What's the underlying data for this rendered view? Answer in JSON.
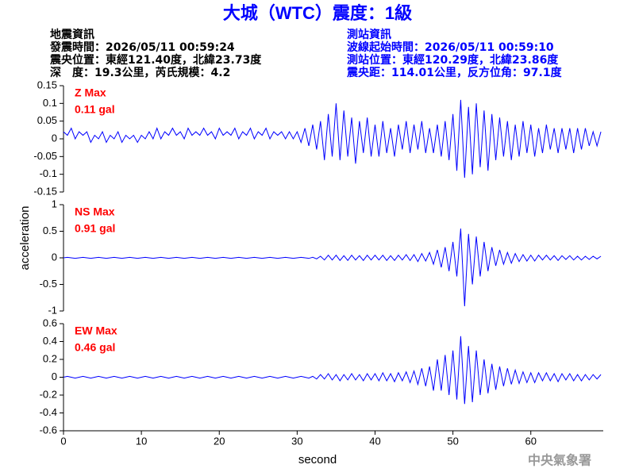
{
  "title": "大城（WTC）震度：1級",
  "left_info": [
    "地震資訊",
    "發震時間：2026/05/11 00:59:24",
    "震央位置：東經121.40度，北緯23.73度",
    "深　度：19.3公里，芮氏規模：4.2"
  ],
  "right_info": [
    "測站資訊",
    "波線起始時間：2026/05/11 00:59:10",
    "測站位置：東經120.29度，北緯23.86度",
    "震央距：114.01公里，反方位角：97.1度"
  ],
  "footer": "中央氣象署",
  "chart_data": [
    {
      "type": "line",
      "color": "#0000ff",
      "annotation_color": "#ff0000",
      "annotations": [
        "Z Max",
        "0.11 gal"
      ],
      "ylim": [
        -0.15,
        0.15
      ],
      "yticks": [
        -0.15,
        -0.1,
        -0.05,
        0,
        0.05,
        0.1,
        0.15
      ],
      "xlim": [
        0,
        69.3
      ],
      "x": [
        0,
        0.5,
        1,
        1.5,
        2,
        2.5,
        3,
        3.5,
        4,
        4.5,
        5,
        5.5,
        6,
        6.5,
        7,
        7.5,
        8,
        8.5,
        9,
        9.5,
        10,
        10.5,
        11,
        11.5,
        12,
        12.5,
        13,
        13.5,
        14,
        14.5,
        15,
        15.5,
        16,
        16.5,
        17,
        17.5,
        18,
        18.5,
        19,
        19.5,
        20,
        20.5,
        21,
        21.5,
        22,
        22.5,
        23,
        23.5,
        24,
        24.5,
        25,
        25.5,
        26,
        26.5,
        27,
        27.5,
        28,
        28.5,
        29,
        29.5,
        30,
        30.5,
        31,
        31.5,
        32,
        32.5,
        33,
        33.5,
        34,
        34.5,
        35,
        35.5,
        36,
        36.5,
        37,
        37.5,
        38,
        38.5,
        39,
        39.5,
        40,
        40.5,
        41,
        41.5,
        42,
        42.5,
        43,
        43.5,
        44,
        44.5,
        45,
        45.5,
        46,
        46.5,
        47,
        47.5,
        48,
        48.5,
        49,
        49.5,
        50,
        50.5,
        51,
        51.5,
        52,
        52.5,
        53,
        53.5,
        54,
        54.5,
        55,
        55.5,
        56,
        56.5,
        57,
        57.5,
        58,
        58.5,
        59,
        59.5,
        60,
        60.5,
        61,
        61.5,
        62,
        62.5,
        63,
        63.5,
        64,
        64.5,
        65,
        65.5,
        66,
        66.5,
        67,
        67.5,
        68,
        68.5,
        69
      ],
      "values": [
        0.02,
        0.01,
        0.03,
        0.0,
        0.02,
        0.01,
        0.02,
        -0.01,
        0.01,
        0.0,
        0.02,
        -0.01,
        0.01,
        0.0,
        0.02,
        -0.01,
        0.01,
        0.0,
        0.01,
        -0.01,
        0.01,
        0.0,
        0.02,
        0.0,
        0.03,
        0.0,
        0.02,
        0.01,
        0.03,
        0.01,
        0.02,
        0.0,
        0.03,
        0.01,
        0.02,
        0.01,
        0.03,
        0.01,
        0.02,
        0.0,
        0.03,
        0.01,
        0.02,
        0.01,
        0.03,
        0.0,
        0.02,
        0.01,
        0.03,
        0.0,
        0.02,
        0.01,
        0.03,
        0.0,
        0.02,
        0.01,
        0.02,
        0.0,
        0.02,
        0.0,
        0.02,
        -0.01,
        0.03,
        -0.02,
        0.04,
        -0.03,
        0.05,
        -0.06,
        0.07,
        -0.05,
        0.1,
        -0.06,
        0.08,
        -0.05,
        0.06,
        -0.07,
        0.05,
        -0.04,
        0.06,
        -0.05,
        0.04,
        -0.05,
        0.05,
        -0.04,
        0.03,
        -0.05,
        0.04,
        -0.03,
        0.05,
        -0.04,
        0.04,
        -0.03,
        0.05,
        -0.04,
        0.03,
        -0.04,
        0.04,
        -0.05,
        0.05,
        -0.06,
        0.07,
        -0.09,
        0.11,
        -0.11,
        0.09,
        -0.1,
        0.1,
        -0.08,
        0.08,
        -0.09,
        0.07,
        -0.06,
        0.06,
        -0.05,
        0.05,
        -0.06,
        0.04,
        -0.05,
        0.05,
        -0.04,
        0.04,
        -0.05,
        0.03,
        -0.04,
        0.04,
        -0.03,
        0.03,
        -0.04,
        0.03,
        -0.03,
        0.03,
        -0.04,
        0.03,
        -0.03,
        0.03,
        -0.02,
        0.02,
        -0.02,
        0.02
      ]
    },
    {
      "type": "line",
      "color": "#0000ff",
      "annotation_color": "#ff0000",
      "annotations": [
        "NS Max",
        "0.91 gal"
      ],
      "ylabel": "acceleration",
      "ylim": [
        -1,
        1
      ],
      "yticks": [
        -1,
        -0.5,
        0,
        0.5,
        1
      ],
      "xlim": [
        0,
        69.3
      ],
      "x": [
        0,
        0.5,
        1,
        1.5,
        2,
        2.5,
        3,
        3.5,
        4,
        4.5,
        5,
        5.5,
        6,
        6.5,
        7,
        7.5,
        8,
        8.5,
        9,
        9.5,
        10,
        10.5,
        11,
        11.5,
        12,
        12.5,
        13,
        13.5,
        14,
        14.5,
        15,
        15.5,
        16,
        16.5,
        17,
        17.5,
        18,
        18.5,
        19,
        19.5,
        20,
        20.5,
        21,
        21.5,
        22,
        22.5,
        23,
        23.5,
        24,
        24.5,
        25,
        25.5,
        26,
        26.5,
        27,
        27.5,
        28,
        28.5,
        29,
        29.5,
        30,
        30.5,
        31,
        31.5,
        32,
        32.5,
        33,
        33.5,
        34,
        34.5,
        35,
        35.5,
        36,
        36.5,
        37,
        37.5,
        38,
        38.5,
        39,
        39.5,
        40,
        40.5,
        41,
        41.5,
        42,
        42.5,
        43,
        43.5,
        44,
        44.5,
        45,
        45.5,
        46,
        46.5,
        47,
        47.5,
        48,
        48.5,
        49,
        49.5,
        50,
        50.5,
        51,
        51.5,
        52,
        52.5,
        53,
        53.5,
        54,
        54.5,
        55,
        55.5,
        56,
        56.5,
        57,
        57.5,
        58,
        58.5,
        59,
        59.5,
        60,
        60.5,
        61,
        61.5,
        62,
        62.5,
        63,
        63.5,
        64,
        64.5,
        65,
        65.5,
        66,
        66.5,
        67,
        67.5,
        68,
        68.5,
        69
      ],
      "values": [
        0,
        0.01,
        0,
        -0.01,
        0,
        0.01,
        0,
        -0.01,
        0,
        0.01,
        0,
        -0.01,
        0,
        0.01,
        0,
        -0.01,
        0,
        0.01,
        0,
        -0.01,
        0,
        0.01,
        0,
        -0.01,
        0,
        0.01,
        0,
        -0.01,
        0,
        0.01,
        0,
        -0.01,
        0,
        0.01,
        0,
        -0.01,
        0,
        0.01,
        0,
        -0.01,
        0,
        0.01,
        0,
        -0.01,
        0,
        0.01,
        0,
        -0.01,
        0,
        0.01,
        0,
        -0.01,
        0,
        0.01,
        0,
        -0.01,
        0,
        0.01,
        0,
        -0.01,
        0,
        0.01,
        0,
        -0.01,
        0.01,
        -0.02,
        0.03,
        -0.04,
        0.05,
        -0.04,
        0.05,
        -0.05,
        0.04,
        -0.05,
        0.05,
        -0.04,
        0.04,
        -0.05,
        0.05,
        -0.04,
        0.05,
        -0.04,
        0.05,
        -0.05,
        0.04,
        -0.05,
        0.05,
        -0.04,
        0.06,
        -0.05,
        0.06,
        -0.07,
        0.08,
        -0.06,
        0.1,
        -0.12,
        0.15,
        -0.18,
        0.2,
        -0.25,
        0.3,
        -0.35,
        0.55,
        -0.91,
        0.45,
        -0.5,
        0.4,
        -0.35,
        0.3,
        -0.25,
        0.2,
        -0.15,
        0.15,
        -0.12,
        0.1,
        -0.1,
        0.08,
        -0.07,
        0.06,
        -0.06,
        0.05,
        -0.06,
        0.05,
        -0.04,
        0.05,
        -0.04,
        0.04,
        -0.05,
        0.04,
        -0.03,
        0.04,
        -0.04,
        0.03,
        -0.04,
        0.03,
        -0.03,
        0.03,
        -0.02,
        0.03
      ]
    },
    {
      "type": "line",
      "color": "#0000ff",
      "annotation_color": "#ff0000",
      "annotations": [
        "EW Max",
        "0.46 gal"
      ],
      "xlabel": "second",
      "ylim": [
        -0.6,
        0.6
      ],
      "yticks": [
        -0.6,
        -0.4,
        -0.2,
        0,
        0.2,
        0.4,
        0.6
      ],
      "xlim": [
        0,
        69.3
      ],
      "xticks": [
        0,
        10,
        20,
        30,
        40,
        50,
        60
      ],
      "x": [
        0,
        0.5,
        1,
        1.5,
        2,
        2.5,
        3,
        3.5,
        4,
        4.5,
        5,
        5.5,
        6,
        6.5,
        7,
        7.5,
        8,
        8.5,
        9,
        9.5,
        10,
        10.5,
        11,
        11.5,
        12,
        12.5,
        13,
        13.5,
        14,
        14.5,
        15,
        15.5,
        16,
        16.5,
        17,
        17.5,
        18,
        18.5,
        19,
        19.5,
        20,
        20.5,
        21,
        21.5,
        22,
        22.5,
        23,
        23.5,
        24,
        24.5,
        25,
        25.5,
        26,
        26.5,
        27,
        27.5,
        28,
        28.5,
        29,
        29.5,
        30,
        30.5,
        31,
        31.5,
        32,
        32.5,
        33,
        33.5,
        34,
        34.5,
        35,
        35.5,
        36,
        36.5,
        37,
        37.5,
        38,
        38.5,
        39,
        39.5,
        40,
        40.5,
        41,
        41.5,
        42,
        42.5,
        43,
        43.5,
        44,
        44.5,
        45,
        45.5,
        46,
        46.5,
        47,
        47.5,
        48,
        48.5,
        49,
        49.5,
        50,
        50.5,
        51,
        51.5,
        52,
        52.5,
        53,
        53.5,
        54,
        54.5,
        55,
        55.5,
        56,
        56.5,
        57,
        57.5,
        58,
        58.5,
        59,
        59.5,
        60,
        60.5,
        61,
        61.5,
        62,
        62.5,
        63,
        63.5,
        64,
        64.5,
        65,
        65.5,
        66,
        66.5,
        67,
        67.5,
        68,
        68.5,
        69
      ],
      "values": [
        0,
        0.01,
        0,
        -0.01,
        0,
        0.01,
        0,
        -0.01,
        0,
        0.01,
        0,
        -0.01,
        0,
        0.01,
        0,
        -0.01,
        0,
        0.01,
        0,
        -0.01,
        0,
        0.01,
        0,
        -0.01,
        0,
        0.01,
        0,
        -0.01,
        0,
        0.01,
        0,
        -0.01,
        0,
        0.01,
        0,
        -0.01,
        0,
        0.01,
        0,
        -0.01,
        0,
        0.01,
        0,
        -0.01,
        0,
        0.01,
        0,
        -0.01,
        0,
        0.01,
        0,
        -0.01,
        0,
        0.01,
        0,
        -0.01,
        0,
        0.01,
        0,
        -0.01,
        0,
        0.01,
        0,
        -0.01,
        0.01,
        -0.02,
        0.03,
        -0.02,
        0.04,
        -0.03,
        0.03,
        -0.04,
        0.03,
        -0.03,
        0.04,
        -0.03,
        0.03,
        -0.04,
        0.04,
        -0.03,
        0.04,
        -0.04,
        0.05,
        -0.04,
        0.04,
        -0.05,
        0.05,
        -0.04,
        0.06,
        -0.06,
        0.07,
        -0.08,
        0.1,
        -0.1,
        0.12,
        -0.15,
        0.2,
        -0.15,
        0.25,
        -0.2,
        0.3,
        -0.25,
        0.46,
        -0.3,
        0.35,
        -0.28,
        0.3,
        -0.2,
        0.2,
        -0.18,
        0.15,
        -0.14,
        0.12,
        -0.1,
        0.1,
        -0.08,
        0.08,
        -0.07,
        0.06,
        -0.06,
        0.05,
        -0.06,
        0.05,
        -0.04,
        0.05,
        -0.04,
        0.04,
        -0.05,
        0.04,
        -0.03,
        0.04,
        -0.04,
        0.03,
        -0.04,
        0.03,
        -0.03,
        0.03,
        -0.02,
        0.03
      ]
    }
  ]
}
